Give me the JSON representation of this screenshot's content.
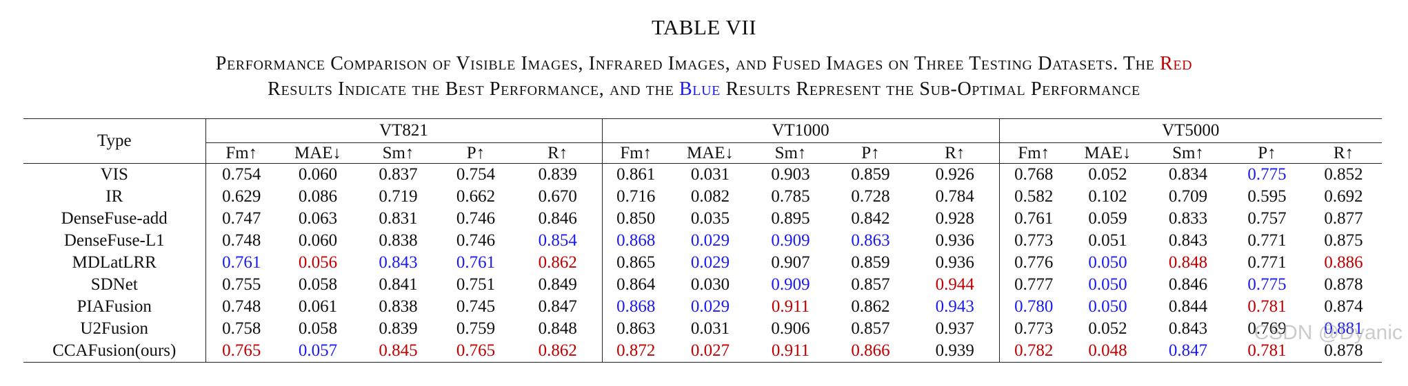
{
  "title": "TABLE VII",
  "caption": {
    "line1_pre": "Performance Comparison of Visible Images, Infrared Images, and Fused Images on Three Testing Datasets. The ",
    "line1_red": "Red",
    "line2_pre": "Results Indicate the Best Performance, and the ",
    "line2_blue": "Blue",
    "line2_post": " Results Represent the Sub-Optimal Performance"
  },
  "colors": {
    "best": "#c00000",
    "sub_optimal": "#1a1af0"
  },
  "table": {
    "type_header": "Type",
    "datasets": [
      "VT821",
      "VT1000",
      "VT5000"
    ],
    "metrics": [
      "Fm↑",
      "MAE↓",
      "Sm↑",
      "P↑",
      "R↑"
    ],
    "rows": [
      {
        "type": "VIS",
        "values": [
          "0.754",
          "0.060",
          "0.837",
          "0.754",
          "0.839",
          "0.861",
          "0.031",
          "0.903",
          "0.859",
          "0.926",
          "0.768",
          "0.052",
          "0.834",
          "0.775",
          "0.852"
        ],
        "styles": [
          "",
          "",
          "",
          "",
          "",
          "",
          "",
          "",
          "",
          "",
          "",
          "",
          "",
          "s",
          ""
        ]
      },
      {
        "type": "IR",
        "values": [
          "0.629",
          "0.086",
          "0.719",
          "0.662",
          "0.670",
          "0.716",
          "0.082",
          "0.785",
          "0.728",
          "0.784",
          "0.582",
          "0.102",
          "0.709",
          "0.595",
          "0.692"
        ],
        "styles": [
          "",
          "",
          "",
          "",
          "",
          "",
          "",
          "",
          "",
          "",
          "",
          "",
          "",
          "",
          ""
        ]
      },
      {
        "type": "DenseFuse-add",
        "values": [
          "0.747",
          "0.063",
          "0.831",
          "0.746",
          "0.846",
          "0.850",
          "0.035",
          "0.895",
          "0.842",
          "0.928",
          "0.761",
          "0.059",
          "0.833",
          "0.757",
          "0.877"
        ],
        "styles": [
          "",
          "",
          "",
          "",
          "",
          "",
          "",
          "",
          "",
          "",
          "",
          "",
          "",
          "",
          ""
        ]
      },
      {
        "type": "DenseFuse-L1",
        "values": [
          "0.748",
          "0.060",
          "0.838",
          "0.746",
          "0.854",
          "0.868",
          "0.029",
          "0.909",
          "0.863",
          "0.936",
          "0.773",
          "0.051",
          "0.843",
          "0.771",
          "0.875"
        ],
        "styles": [
          "",
          "",
          "",
          "",
          "s",
          "s",
          "s",
          "s",
          "s",
          "",
          "",
          "",
          "",
          "",
          ""
        ]
      },
      {
        "type": "MDLatLRR",
        "values": [
          "0.761",
          "0.056",
          "0.843",
          "0.761",
          "0.862",
          "0.865",
          "0.029",
          "0.907",
          "0.859",
          "0.936",
          "0.776",
          "0.050",
          "0.848",
          "0.771",
          "0.886"
        ],
        "styles": [
          "s",
          "b",
          "s",
          "s",
          "b",
          "",
          "s",
          "",
          "",
          "",
          "",
          "s",
          "b",
          "",
          "b"
        ]
      },
      {
        "type": "SDNet",
        "values": [
          "0.755",
          "0.058",
          "0.841",
          "0.751",
          "0.849",
          "0.864",
          "0.030",
          "0.909",
          "0.857",
          "0.944",
          "0.777",
          "0.050",
          "0.846",
          "0.775",
          "0.878"
        ],
        "styles": [
          "",
          "",
          "",
          "",
          "",
          "",
          "",
          "s",
          "",
          "b",
          "",
          "s",
          "",
          "s",
          ""
        ]
      },
      {
        "type": "PIAFusion",
        "values": [
          "0.748",
          "0.061",
          "0.838",
          "0.745",
          "0.847",
          "0.868",
          "0.029",
          "0.911",
          "0.862",
          "0.943",
          "0.780",
          "0.050",
          "0.844",
          "0.781",
          "0.874"
        ],
        "styles": [
          "",
          "",
          "",
          "",
          "",
          "s",
          "s",
          "b",
          "",
          "s",
          "s",
          "s",
          "",
          "b",
          ""
        ]
      },
      {
        "type": "U2Fusion",
        "values": [
          "0.758",
          "0.058",
          "0.839",
          "0.759",
          "0.848",
          "0.863",
          "0.031",
          "0.906",
          "0.857",
          "0.937",
          "0.773",
          "0.052",
          "0.843",
          "0.769",
          "0.881"
        ],
        "styles": [
          "",
          "",
          "",
          "",
          "",
          "",
          "",
          "",
          "",
          "",
          "",
          "",
          "",
          "",
          "s"
        ]
      },
      {
        "type": "CCAFusion(ours)",
        "type_bold": true,
        "values": [
          "0.765",
          "0.057",
          "0.845",
          "0.765",
          "0.862",
          "0.872",
          "0.027",
          "0.911",
          "0.866",
          "0.939",
          "0.782",
          "0.048",
          "0.847",
          "0.781",
          "0.878"
        ],
        "styles": [
          "b",
          "s",
          "b",
          "b",
          "b",
          "b",
          "b",
          "b",
          "b",
          "",
          "b",
          "b",
          "s",
          "b",
          ""
        ]
      }
    ]
  },
  "watermark": "CSDN @Dyanic"
}
